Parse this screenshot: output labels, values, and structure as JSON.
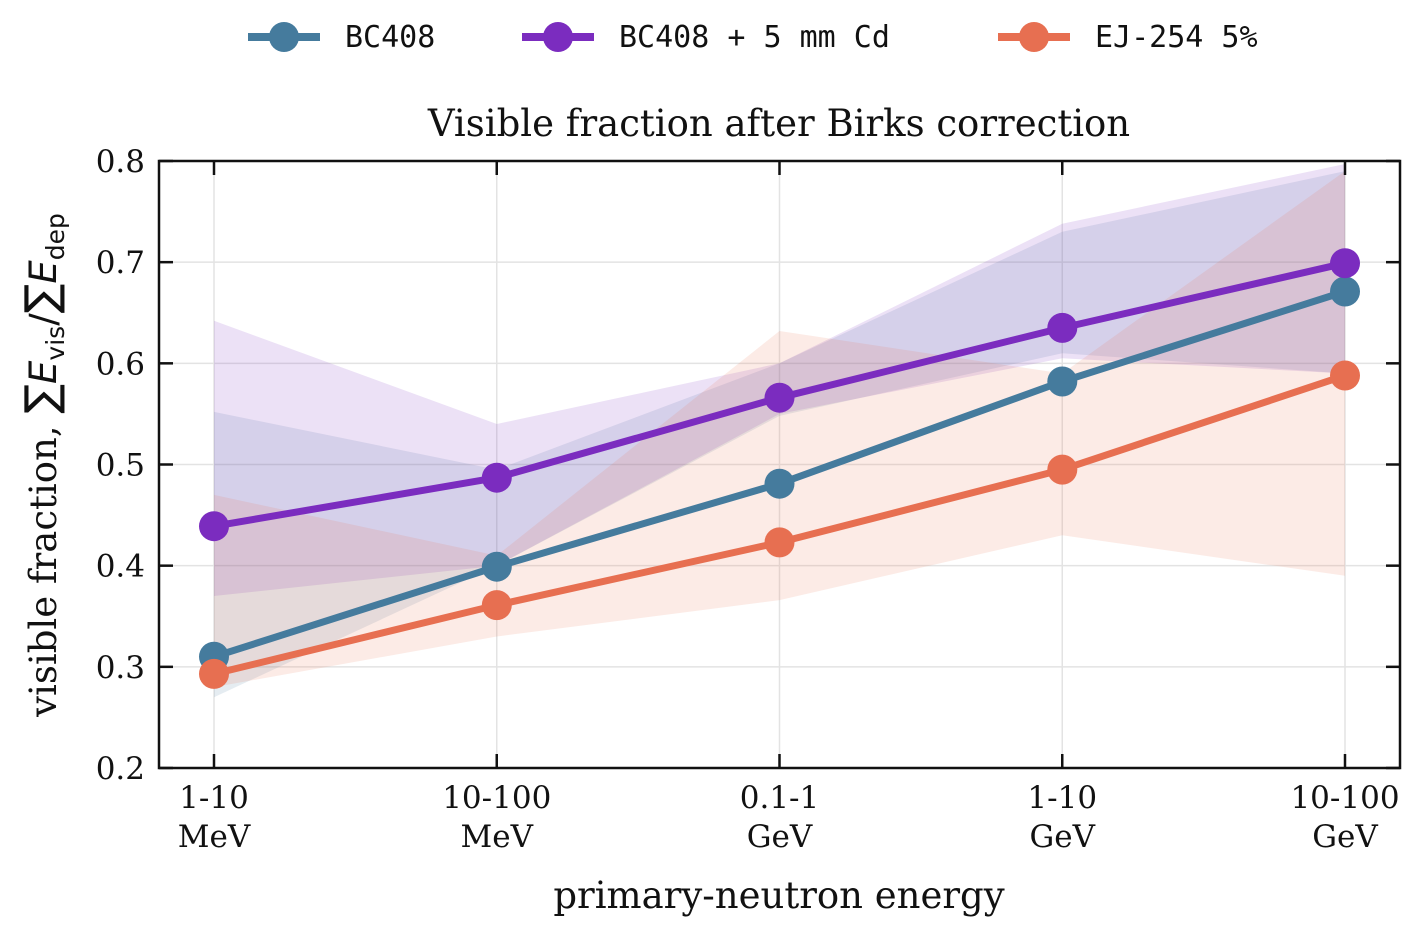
{
  "chart_data": {
    "type": "line",
    "title": "Visible fraction after Birks correction",
    "xlabel": "primary-neutron energy",
    "ylabel": {
      "prefix": "visible fraction, ",
      "sum_symbol": "∑",
      "numerator_var": "E",
      "numerator_sub": "vis",
      "divider": "/",
      "denominator_var": "E",
      "denominator_sub": "dep"
    },
    "categories": [
      [
        "1-10",
        "MeV"
      ],
      [
        "10-100",
        "MeV"
      ],
      [
        "0.1-1",
        "GeV"
      ],
      [
        "1-10",
        "GeV"
      ],
      [
        "10-100",
        "GeV"
      ]
    ],
    "ylim": [
      0.2,
      0.8
    ],
    "yticks": [
      "0.2",
      "0.3",
      "0.4",
      "0.5",
      "0.6",
      "0.7",
      "0.8"
    ],
    "grid": true,
    "legend_position": "top-center, above plot",
    "series": [
      {
        "name": "BC408",
        "color": "#457b9d",
        "values": [
          0.31,
          0.399,
          0.481,
          0.582,
          0.671
        ],
        "band_lower": [
          0.27,
          0.4,
          0.548,
          0.61,
          0.59
        ],
        "band_upper": [
          0.552,
          0.495,
          0.6,
          0.73,
          0.79
        ]
      },
      {
        "name": "BC408 + 5 mm Cd",
        "color": "#7b2cbf",
        "values": [
          0.439,
          0.487,
          0.566,
          0.635,
          0.699
        ],
        "band_lower": [
          0.37,
          0.4,
          0.55,
          0.605,
          0.59
        ],
        "band_upper": [
          0.642,
          0.54,
          0.6,
          0.738,
          0.797
        ]
      },
      {
        "name": "EJ-254 5%",
        "color": "#e76f51",
        "values": [
          0.293,
          0.361,
          0.423,
          0.495,
          0.588
        ],
        "band_lower": [
          0.28,
          0.33,
          0.366,
          0.43,
          0.39
        ],
        "band_upper": [
          0.47,
          0.41,
          0.632,
          0.59,
          0.79
        ]
      }
    ]
  }
}
